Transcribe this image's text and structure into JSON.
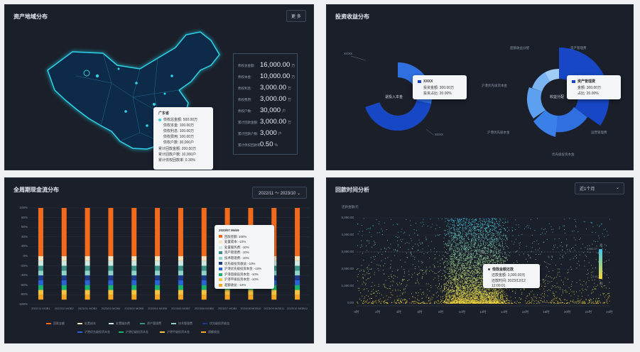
{
  "map_panel": {
    "title": "资产地域分布",
    "button": "更 多",
    "stats": [
      {
        "label": "债权总金额:",
        "value": "16,000.00",
        "unit": "万"
      },
      {
        "label": "债权本金:",
        "value": "10,000.00",
        "unit": "万"
      },
      {
        "label": "债权利息:",
        "value": "3,000.00",
        "unit": "万"
      },
      {
        "label": "债权费用:",
        "value": "3,000.00",
        "unit": "万"
      },
      {
        "label": "债权户数:",
        "value": "30,000",
        "unit": "户"
      },
      {
        "label": "累计回款金额:",
        "value": "3,000.00",
        "unit": "万"
      },
      {
        "label": "累计回款户数:",
        "value": "3,000",
        "unit": "户"
      },
      {
        "label": "累计债权回款率:",
        "value": "0.50",
        "unit": "%"
      }
    ],
    "tooltip": {
      "title": "广东省",
      "rows": [
        "债权总金额: 500.00万",
        "债权本金: 100.00万",
        "债权利息: 100.00万",
        "债权费用: 100.00万",
        "债权户数: 30,000户",
        "累计回款金额: 200.00万",
        "累计回款户数: 10,000户",
        "累计债权回款率: 0.30%"
      ]
    }
  },
  "income_panel": {
    "title": "投资收益分布",
    "left_donut": {
      "center": "退投入本金",
      "label_top": "XXXX",
      "label_bottom": "XXXX"
    },
    "left_tooltip": {
      "name": "XXXX",
      "rows": [
        "投资金额: 300.00万",
        "投资占比: 20.00%"
      ]
    },
    "right_donut": {
      "center": "收益分配",
      "labels": [
        "超额收益分配",
        "资产管理费",
        "沪港优先级资本金",
        "沪港优先级本金",
        "运营管理费",
        "优先级投资本金"
      ]
    },
    "right_tooltip": {
      "name": "资产管理费",
      "rows": [
        "金额: 300.00万",
        "占比: 20.00%"
      ]
    },
    "colors": {
      "dark": "#1747c4",
      "mid": "#2f6fe0",
      "light": "#5ea0f0",
      "pale": "#9fcdf8"
    }
  },
  "cashflow_panel": {
    "title": "全周期现金流分布",
    "range": "2022/11 ～ 2023/10",
    "y_ticks": [
      "100%",
      "80%",
      "60%",
      "40%",
      "20%",
      "0%",
      "-20%",
      "-40%",
      "-60%",
      "-80%",
      "-100%"
    ],
    "categories": [
      "2022/11 MOB1",
      "2022/12 MOB2",
      "2023/01 MOB3",
      "2023/02 MOB4",
      "2023/03 MOB5",
      "2023/04 MOB6",
      "2023/05 MOB7",
      "2023/06 MOB8",
      "2023/07 MOB9",
      "2023/08 MOB10",
      "2023/09 MOB11",
      "2023/10 MOB12"
    ],
    "legend1": [
      "回款金额",
      "处置成本",
      "处置服务费",
      "资产管理费",
      "技术管理费",
      "优先级投资收益"
    ],
    "legend2": [
      "沪港优先级投资本金",
      "沪港后级投资本金",
      "沪港平级投资本金",
      "超额收益"
    ],
    "tooltip": {
      "title": "2023/07 Mob9",
      "rows": [
        {
          "name": "回款金额: 100%",
          "color": "#f26b1d"
        },
        {
          "name": "处置成本: -10%",
          "color": "#f4e4c1"
        },
        {
          "name": "处置服务费: -10%",
          "color": "#cfe8e0"
        },
        {
          "name": "资产管理费: -10%",
          "color": "#3a8f86"
        },
        {
          "name": "技术管理费: -10%",
          "color": "#8fd3c8"
        },
        {
          "name": "优先级投资收益: -10%",
          "color": "#1d3a8a"
        },
        {
          "name": "沪港优先级投资本金: -10%",
          "color": "#2a63d6"
        },
        {
          "name": "沪港后级投资本金: -10%",
          "color": "#1ab36b"
        },
        {
          "name": "沪港平级投资本金: -10%",
          "color": "#f5c542"
        },
        {
          "name": "超额收益: -10%",
          "color": "#f5a623"
        }
      ]
    },
    "chart_data": {
      "type": "bar",
      "stacked": true,
      "categories": [
        "2022/11 MOB1",
        "2022/12 MOB2",
        "2023/01 MOB3",
        "2023/02 MOB4",
        "2023/03 MOB5",
        "2023/04 MOB6",
        "2023/05 MOB7",
        "2023/06 MOB8",
        "2023/07 MOB9",
        "2023/08 MOB10",
        "2023/09 MOB11",
        "2023/10 MOB12"
      ],
      "series": [
        {
          "name": "回款金额",
          "values": [
            100,
            100,
            100,
            100,
            100,
            100,
            100,
            100,
            100,
            100,
            100,
            100
          ],
          "color": "#f26b1d"
        },
        {
          "name": "处置成本",
          "values": [
            -10,
            -10,
            -10,
            -10,
            -10,
            -10,
            -10,
            -10,
            -10,
            -10,
            -10,
            -10
          ],
          "color": "#f4e4c1"
        },
        {
          "name": "处置服务费",
          "values": [
            -10,
            -10,
            -10,
            -10,
            -10,
            -10,
            -10,
            -10,
            -10,
            -10,
            -10,
            -10
          ],
          "color": "#cfe8e0"
        },
        {
          "name": "资产管理费",
          "values": [
            -10,
            -10,
            -10,
            -10,
            -10,
            -10,
            -10,
            -10,
            -10,
            -10,
            -10,
            -10
          ],
          "color": "#3a8f86"
        },
        {
          "name": "技术管理费",
          "values": [
            -10,
            -10,
            -10,
            -10,
            -10,
            -10,
            -10,
            -10,
            -10,
            -10,
            -10,
            -10
          ],
          "color": "#8fd3c8"
        },
        {
          "name": "优先级投资收益",
          "values": [
            -10,
            -10,
            -10,
            -10,
            -10,
            -10,
            -10,
            -10,
            -10,
            -10,
            -10,
            -10
          ],
          "color": "#1d3a8a"
        },
        {
          "name": "沪港优先级投资本金",
          "values": [
            -10,
            -10,
            -10,
            -10,
            -10,
            -10,
            -10,
            -10,
            -10,
            -10,
            -10,
            -10
          ],
          "color": "#2a63d6"
        },
        {
          "name": "沪港后级投资本金",
          "values": [
            -10,
            -10,
            -10,
            -10,
            -10,
            -10,
            -10,
            -10,
            -10,
            -10,
            -10,
            -10
          ],
          "color": "#1ab36b"
        },
        {
          "name": "沪港平级投资本金",
          "values": [
            -10,
            -10,
            -10,
            -10,
            -10,
            -10,
            -10,
            -10,
            -10,
            -10,
            -10,
            -10
          ],
          "color": "#f5c542"
        },
        {
          "name": "超额收益",
          "values": [
            -10,
            -10,
            -10,
            -10,
            -10,
            -10,
            -10,
            -10,
            -10,
            -10,
            -10,
            -10
          ],
          "color": "#f5a623"
        }
      ],
      "ylim": [
        -100,
        100
      ]
    }
  },
  "repay_panel": {
    "title": "回款时间分析",
    "select": "近1个月",
    "ylabel": "还款金额/元",
    "y_ticks": [
      "5,000.00",
      "4,000.00",
      "3,000.00",
      "2,000.00",
      "1,000.00",
      "0.00"
    ],
    "x_ticks": [
      "0时",
      "2时",
      "4时",
      "6时",
      "8时",
      "10时",
      "12时",
      "14时",
      "16时",
      "18时",
      "20时",
      "22时",
      "24时"
    ],
    "legend": {
      "high": "高",
      "low": "低",
      "max": "4,952.27",
      "min": "0.10"
    },
    "tooltip": {
      "title": "借款金额还款",
      "rows": [
        "还款金额: 3,000.00元",
        "还款时间: 2023/12/12 12:00:01"
      ]
    },
    "chart_data": {
      "type": "scatter",
      "xlabel": "时",
      "ylabel": "还款金额/元",
      "xlim": [
        0,
        24
      ],
      "ylim": [
        0,
        5000
      ],
      "point_count": 6000,
      "density": "concentrated 8时–14时",
      "highlight_point": {
        "x": 12,
        "y": 3000
      }
    }
  }
}
